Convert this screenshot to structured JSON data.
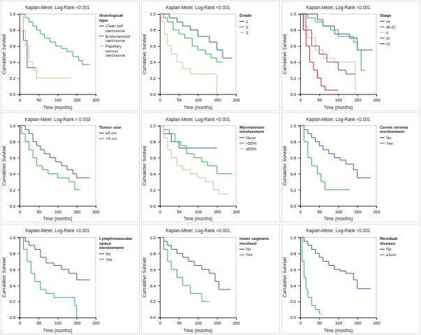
{
  "chart_data": [
    {
      "type": "line",
      "title": "Kaplan-Meier, Log-Rank <0.001",
      "x_label": "Time (months)",
      "y_label": "Cumulative Survival",
      "legend_title": "Histological type",
      "legend": "right",
      "line_style": "step",
      "grid": false,
      "xlim": [
        0,
        200
      ],
      "ylim": [
        0,
        1
      ],
      "xticks": [
        0,
        50,
        100,
        150,
        200
      ],
      "yticks": [
        {
          "value": 0,
          "label": "0.0"
        },
        0.2,
        0.4,
        0.6,
        0.8,
        {
          "value": 1,
          "label": "1.0"
        }
      ],
      "series": [
        {
          "name": "Clear cell carcinoma",
          "color": "#3e58ac",
          "x": [
            0,
            10,
            20,
            45
          ],
          "values": [
            1,
            0.67,
            0.33,
            0.33
          ]
        },
        {
          "name": "Endometrioid carcinoma",
          "color": "#2eb848",
          "x": [
            0,
            10,
            15,
            25,
            35,
            45,
            55,
            65,
            80,
            95,
            110,
            125,
            140,
            155,
            165,
            185
          ],
          "values": [
            1,
            1,
            0.95,
            0.9,
            0.85,
            0.8,
            0.75,
            0.7,
            0.65,
            0.6,
            0.57,
            0.53,
            0.47,
            0.42,
            0.37,
            0.37
          ]
        },
        {
          "name": "Papillary serous carcinoma",
          "color": "#d3c78f",
          "x": [
            0,
            10,
            15,
            25,
            35,
            45,
            135
          ],
          "values": [
            1,
            0.8,
            0.6,
            0.4,
            0.3,
            0.2,
            0.2
          ]
        }
      ]
    },
    {
      "type": "line",
      "title": "Kaplan-Meier, Log-Rank <0.001",
      "x_label": "Time (months)",
      "y_label": "Cumulative Survival",
      "legend_title": "Grade",
      "legend": "right",
      "line_style": "step",
      "grid": false,
      "xlim": [
        0,
        200
      ],
      "ylim": [
        0,
        1
      ],
      "xticks": [
        0,
        50,
        100,
        150,
        200
      ],
      "yticks": [
        {
          "value": 0,
          "label": "0.0"
        },
        0.2,
        0.4,
        0.6,
        0.8,
        {
          "value": 1,
          "label": "1.0"
        }
      ],
      "series": [
        {
          "name": "1",
          "color": "#3e58ac",
          "x": [
            0,
            25,
            45,
            60,
            80,
            100,
            130,
            150,
            165,
            190
          ],
          "values": [
            1,
            0.95,
            0.9,
            0.85,
            0.8,
            0.72,
            0.65,
            0.55,
            0.45,
            0.45
          ]
        },
        {
          "name": "2",
          "color": "#2eb848",
          "x": [
            0,
            10,
            20,
            35,
            50,
            65,
            85,
            100,
            120,
            135,
            150,
            165
          ],
          "values": [
            1,
            0.95,
            0.9,
            0.8,
            0.75,
            0.7,
            0.6,
            0.55,
            0.5,
            0.45,
            0.4,
            0.4
          ]
        },
        {
          "name": "3",
          "color": "#d3c78f",
          "x": [
            0,
            5,
            12,
            20,
            30,
            45,
            60,
            80,
            145,
            150
          ],
          "values": [
            1,
            0.9,
            0.75,
            0.6,
            0.5,
            0.4,
            0.32,
            0.25,
            0.25,
            0
          ]
        }
      ]
    },
    {
      "type": "line",
      "title": "Kaplan-Meier, Log-Rank <0.001",
      "x_label": "Time (months)",
      "y_label": "Cumulative Survival",
      "legend_title": "Stage",
      "legend": "right",
      "line_style": "step",
      "grid": false,
      "xlim": [
        0,
        200
      ],
      "ylim": [
        0,
        1
      ],
      "xticks": [
        0,
        50,
        100,
        150,
        200
      ],
      "yticks": [
        {
          "value": 0,
          "label": "0.0"
        },
        0.2,
        0.4,
        0.6,
        0.8,
        {
          "value": 1,
          "label": "1.0"
        }
      ],
      "series": [
        {
          "name": "IA",
          "color": "#3e58ac",
          "x": [
            0,
            45,
            60,
            90,
            130,
            150,
            190
          ],
          "values": [
            1,
            0.93,
            0.85,
            0.75,
            0.7,
            0.55,
            0.55
          ]
        },
        {
          "name": "IB-IC",
          "color": "#2eb848",
          "x": [
            0,
            20,
            40,
            60,
            80,
            100,
            140,
            150,
            160,
            170
          ],
          "values": [
            1,
            0.95,
            0.9,
            0.85,
            0.8,
            0.72,
            0.65,
            0.55,
            0.3,
            0.3
          ]
        },
        {
          "name": "II",
          "color": "#d3c78f",
          "x": [
            0,
            10,
            20,
            40,
            60,
            90,
            140,
            145
          ],
          "values": [
            1,
            0.85,
            0.7,
            0.55,
            0.45,
            0.4,
            0.4,
            0
          ]
        },
        {
          "name": "III",
          "color": "#7b4a8c",
          "x": [
            0,
            15,
            30,
            50,
            70,
            100,
            120,
            145
          ],
          "values": [
            1,
            0.8,
            0.6,
            0.5,
            0.4,
            0.3,
            0.25,
            0.25
          ]
        },
        {
          "name": "IV",
          "color": "#e0191b",
          "x": [
            0,
            8,
            15,
            25,
            35,
            45,
            55,
            65,
            100
          ],
          "values": [
            1,
            0.8,
            0.6,
            0.4,
            0.3,
            0.2,
            0.1,
            0.05,
            0.05
          ]
        }
      ]
    },
    {
      "type": "line",
      "title": "Kaplan-Meier, Log-Rank = 0.003",
      "x_label": "Time (months)",
      "y_label": "Cumulative Survival",
      "legend_title": "Tumor size",
      "legend": "right",
      "line_style": "step",
      "grid": false,
      "xlim": [
        0,
        200
      ],
      "ylim": [
        0,
        1
      ],
      "xticks": [
        0,
        50,
        100,
        150,
        200
      ],
      "yticks": [
        {
          "value": 0,
          "label": "0.0"
        },
        0.2,
        0.4,
        0.6,
        0.8,
        {
          "value": 1,
          "label": "1.0"
        }
      ],
      "series": [
        {
          "name": "≤4 cm",
          "color": "#3e58ac",
          "x": [
            0,
            15,
            25,
            35,
            45,
            55,
            65,
            80,
            95,
            110,
            125,
            140,
            150,
            185
          ],
          "values": [
            1,
            0.95,
            0.9,
            0.8,
            0.75,
            0.7,
            0.65,
            0.6,
            0.55,
            0.5,
            0.45,
            0.4,
            0.35,
            0.35
          ]
        },
        {
          "name": ">4 cm",
          "color": "#2eb848",
          "x": [
            0,
            5,
            15,
            25,
            35,
            45,
            60,
            75,
            100,
            130,
            145,
            160
          ],
          "values": [
            1,
            0.9,
            0.8,
            0.7,
            0.6,
            0.5,
            0.45,
            0.4,
            0.35,
            0.3,
            0.2,
            0.2
          ]
        }
      ]
    },
    {
      "type": "line",
      "title": "Kaplan-Meier, Log-Rank <0.001",
      "x_label": "Time (months)",
      "y_label": "Cumulative Survival",
      "legend_title": "Myometrium involvement",
      "legend": "right",
      "line_style": "step",
      "grid": false,
      "xlim": [
        0,
        200
      ],
      "ylim": [
        0,
        1
      ],
      "xticks": [
        0,
        50,
        100,
        150,
        200
      ],
      "yticks": [
        {
          "value": 0,
          "label": "0.0"
        },
        0.2,
        0.4,
        0.6,
        0.8,
        {
          "value": 1,
          "label": "1.0"
        }
      ],
      "series": [
        {
          "name": "None",
          "color": "#3e58ac",
          "x": [
            0,
            10,
            30,
            50,
            150
          ],
          "values": [
            1,
            0.9,
            0.8,
            0.72,
            0.72
          ]
        },
        {
          "name": "<50%",
          "color": "#2eb848",
          "x": [
            0,
            10,
            25,
            40,
            55,
            70,
            90,
            110,
            125,
            150,
            190
          ],
          "values": [
            1,
            0.95,
            0.9,
            0.8,
            0.75,
            0.65,
            0.6,
            0.55,
            0.5,
            0.4,
            0.4
          ]
        },
        {
          "name": "≥50%",
          "color": "#d3c78f",
          "x": [
            0,
            10,
            20,
            30,
            45,
            60,
            80,
            100,
            120,
            140,
            155,
            180
          ],
          "values": [
            1,
            0.85,
            0.7,
            0.6,
            0.5,
            0.45,
            0.4,
            0.35,
            0.3,
            0.2,
            0.15,
            0.15
          ]
        }
      ]
    },
    {
      "type": "line",
      "title": "Kaplan-Meier, Log-Rank <0.001",
      "x_label": "Time (months)",
      "y_label": "Cumulative Survival",
      "legend_title": "Cervix stroma involvement",
      "legend": "right",
      "line_style": "step",
      "grid": false,
      "xlim": [
        0,
        200
      ],
      "ylim": [
        0,
        1
      ],
      "xticks": [
        0,
        50,
        100,
        150,
        200
      ],
      "yticks": [
        {
          "value": 0,
          "label": "0.0"
        },
        0.2,
        0.4,
        0.6,
        0.8,
        {
          "value": 1,
          "label": "1.0"
        }
      ],
      "series": [
        {
          "name": "No",
          "color": "#3e58ac",
          "x": [
            0,
            10,
            20,
            30,
            40,
            50,
            60,
            75,
            90,
            105,
            120,
            140,
            150,
            185
          ],
          "values": [
            1,
            0.95,
            0.9,
            0.85,
            0.8,
            0.75,
            0.7,
            0.65,
            0.6,
            0.57,
            0.52,
            0.45,
            0.35,
            0.35
          ]
        },
        {
          "name": "Yes",
          "color": "#2eb848",
          "x": [
            0,
            10,
            20,
            30,
            45,
            55,
            65,
            130
          ],
          "values": [
            1,
            0.8,
            0.6,
            0.5,
            0.4,
            0.3,
            0.2,
            0.2
          ]
        }
      ]
    },
    {
      "type": "line",
      "title": "Kaplan-Meier, Log-Rank <0.001",
      "x_label": "Time (months)",
      "y_label": "Cumulative Survival",
      "legend_title": "Lymphovascular space involvement",
      "legend": "right",
      "line_style": "step",
      "grid": false,
      "xlim": [
        0,
        200
      ],
      "ylim": [
        0,
        1
      ],
      "xticks": [
        0,
        50,
        100,
        150,
        200
      ],
      "yticks": [
        {
          "value": 0,
          "label": "0.0"
        },
        0.2,
        0.4,
        0.6,
        0.8,
        {
          "value": 1,
          "label": "1.0"
        }
      ],
      "series": [
        {
          "name": "No",
          "color": "#3e58ac",
          "x": [
            0,
            15,
            25,
            40,
            55,
            70,
            90,
            110,
            130,
            150,
            185
          ],
          "values": [
            1,
            0.95,
            0.9,
            0.85,
            0.75,
            0.68,
            0.65,
            0.6,
            0.55,
            0.47,
            0.47
          ]
        },
        {
          "name": "Yes",
          "color": "#2eb848",
          "x": [
            0,
            10,
            20,
            30,
            40,
            55,
            70,
            90,
            130,
            145,
            150
          ],
          "values": [
            1,
            0.85,
            0.7,
            0.55,
            0.45,
            0.35,
            0.3,
            0.25,
            0.25,
            0.15,
            0
          ]
        }
      ]
    },
    {
      "type": "line",
      "title": "Kaplan-Meier, Log-Rank <0.001",
      "x_label": "Time (months)",
      "y_label": "Cumulative Survival",
      "legend_title": "lower segment involved",
      "legend": "right",
      "line_style": "step",
      "grid": false,
      "xlim": [
        0,
        200
      ],
      "ylim": [
        0,
        1
      ],
      "xticks": [
        0,
        50,
        100,
        150,
        200
      ],
      "yticks": [
        {
          "value": 0,
          "label": "0.0"
        },
        0.2,
        0.4,
        0.6,
        0.8,
        {
          "value": 1,
          "label": "1.0"
        }
      ],
      "series": [
        {
          "name": "No",
          "color": "#3e58ac",
          "x": [
            0,
            10,
            20,
            30,
            45,
            60,
            75,
            90,
            110,
            130,
            145,
            155,
            185
          ],
          "values": [
            1,
            0.95,
            0.9,
            0.85,
            0.8,
            0.75,
            0.7,
            0.65,
            0.6,
            0.55,
            0.45,
            0.35,
            0.35
          ]
        },
        {
          "name": "Yes",
          "color": "#2eb848",
          "x": [
            0,
            10,
            20,
            30,
            45,
            60,
            80,
            110,
            130
          ],
          "values": [
            1,
            0.85,
            0.7,
            0.6,
            0.5,
            0.4,
            0.3,
            0.2,
            0.2
          ]
        }
      ]
    },
    {
      "type": "line",
      "title": "Kaplan-Meier, Log-Rank <0.001",
      "x_label": "Time (months)",
      "y_label": "Cumulative Survival",
      "legend_title": "Residual disease",
      "legend": "right",
      "line_style": "step",
      "grid": false,
      "xlim": [
        0,
        200
      ],
      "ylim": [
        0,
        1
      ],
      "xticks": [
        0,
        50,
        100,
        150,
        200
      ],
      "yticks": [
        {
          "value": 0,
          "label": "0.0"
        },
        0.2,
        0.4,
        0.6,
        0.8,
        {
          "value": 1,
          "label": "1.0"
        }
      ],
      "series": [
        {
          "name": "No",
          "color": "#3e58ac",
          "x": [
            0,
            10,
            20,
            30,
            40,
            50,
            60,
            75,
            90,
            105,
            120,
            140,
            150,
            185
          ],
          "values": [
            1,
            0.95,
            0.9,
            0.85,
            0.8,
            0.75,
            0.7,
            0.65,
            0.6,
            0.58,
            0.55,
            0.47,
            0.36,
            0.36
          ]
        },
        {
          "name": "≥1cm",
          "color": "#2eb848",
          "x": [
            0,
            5,
            10,
            15,
            20,
            30,
            40,
            50,
            55
          ],
          "values": [
            1,
            0.7,
            0.5,
            0.35,
            0.25,
            0.15,
            0.1,
            0.05,
            0.05
          ]
        }
      ]
    }
  ]
}
